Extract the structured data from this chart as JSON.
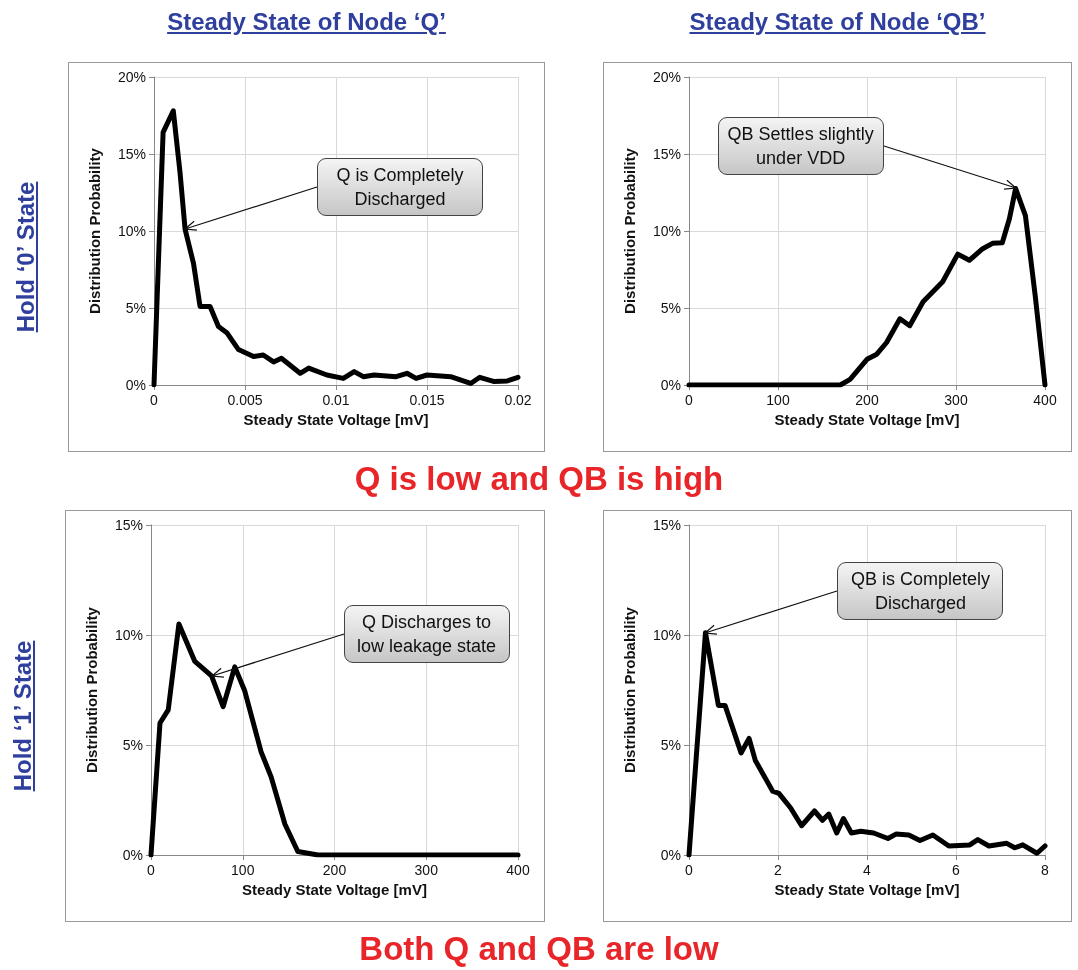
{
  "chart_data": [
    {
      "type": "line",
      "title": "Steady State of Node ‘Q’",
      "xlabel": "Steady State Voltage [mV]",
      "ylabel": "Distribution Probability",
      "grid": true,
      "marker": "none",
      "line_style": "solid",
      "xlim": [
        0,
        0.02
      ],
      "xticks": [
        0,
        0.005,
        0.01,
        0.015,
        0.02
      ],
      "ylim": [
        0,
        20
      ],
      "yticks": [
        {
          "value": 0,
          "label": "0%"
        },
        {
          "value": 5,
          "label": "5%"
        },
        {
          "value": 10,
          "label": "10%"
        },
        {
          "value": 15,
          "label": "15%"
        },
        {
          "value": 20,
          "label": "20%"
        }
      ],
      "series": [
        {
          "color": "#000000",
          "x": [
            0,
            0.0005,
            0.00106,
            0.00143,
            0.00171,
            0.00217,
            0.00253,
            0.00308,
            0.00354,
            0.004,
            0.00464,
            0.00547,
            0.006,
            0.00657,
            0.007,
            0.00803,
            0.0085,
            0.0095,
            0.0104,
            0.011,
            0.0115,
            0.0121,
            0.0133,
            0.0139,
            0.0144,
            0.015,
            0.0163,
            0.0174,
            0.0179,
            0.0187,
            0.0194,
            0.02
          ],
          "values": [
            0,
            16.4,
            17.8,
            13.8,
            10.1,
            7.9,
            5.1,
            5.1,
            3.8,
            3.4,
            2.3,
            1.85,
            1.95,
            1.5,
            1.74,
            0.76,
            1.1,
            0.65,
            0.43,
            0.87,
            0.54,
            0.65,
            0.54,
            0.76,
            0.43,
            0.65,
            0.54,
            0.1,
            0.5,
            0.22,
            0.26,
            0.5
          ]
        }
      ],
      "annotations": [
        {
          "text": "Q is Completely Discharged",
          "x": 0.00171,
          "y": 10.1
        },
        "Hold ‘0’ State",
        "Q is low and QB is high"
      ]
    },
    {
      "type": "line",
      "title": "Steady State of Node ‘QB’",
      "xlabel": "Steady State Voltage [mV]",
      "ylabel": "Distribution Probability",
      "grid": true,
      "marker": "none",
      "line_style": "solid",
      "xlim": [
        0,
        400
      ],
      "xticks": [
        0,
        100,
        200,
        300,
        400
      ],
      "ylim": [
        0,
        20
      ],
      "yticks": [
        {
          "value": 0,
          "label": "0%"
        },
        {
          "value": 5,
          "label": "5%"
        },
        {
          "value": 10,
          "label": "10%"
        },
        {
          "value": 15,
          "label": "15%"
        },
        {
          "value": 20,
          "label": "20%"
        }
      ],
      "series": [
        {
          "color": "#000000",
          "x": [
            0,
            170,
            181,
            200,
            211,
            222,
            237,
            248,
            263,
            285,
            302,
            315,
            330,
            341,
            352,
            360,
            367,
            378,
            389,
            400
          ],
          "values": [
            0,
            0,
            0.37,
            1.67,
            2.0,
            2.76,
            4.3,
            3.85,
            5.4,
            6.7,
            8.5,
            8.1,
            8.85,
            9.2,
            9.24,
            10.8,
            12.76,
            11.0,
            5.8,
            0
          ]
        }
      ],
      "annotations": [
        {
          "text": "QB Settles slightly under VDD",
          "x": 367,
          "y": 12.76
        }
      ]
    },
    {
      "type": "line",
      "xlabel": "Steady State Voltage [mV]",
      "ylabel": "Distribution Probability",
      "grid": true,
      "marker": "none",
      "line_style": "solid",
      "xlim": [
        0,
        400
      ],
      "xticks": [
        0,
        100,
        200,
        300,
        400
      ],
      "ylim": [
        0,
        15
      ],
      "yticks": [
        {
          "value": 0,
          "label": "0%"
        },
        {
          "value": 5,
          "label": "5%"
        },
        {
          "value": 10,
          "label": "10%"
        },
        {
          "value": 15,
          "label": "15%"
        }
      ],
      "series": [
        {
          "color": "#000000",
          "x": [
            0,
            9.8,
            18.8,
            30.4,
            47.8,
            66,
            78.6,
            91.3,
            102,
            120,
            131,
            146,
            160,
            182,
            400
          ],
          "values": [
            0,
            6.0,
            6.6,
            10.5,
            8.8,
            8.14,
            6.74,
            8.55,
            7.48,
            4.69,
            3.54,
            1.4,
            0.16,
            0,
            0
          ]
        }
      ],
      "annotations": [
        {
          "text": "Q Discharges to low leakage state",
          "x": 66,
          "y": 8.14
        },
        "Hold ‘1’ State",
        "Both Q and QB are low"
      ]
    },
    {
      "type": "line",
      "xlabel": "Steady State Voltage [mV]",
      "ylabel": "Distribution Probability",
      "grid": true,
      "marker": "none",
      "line_style": "solid",
      "xlim": [
        0,
        8
      ],
      "xticks": [
        0,
        2,
        4,
        6,
        8
      ],
      "ylim": [
        0,
        15
      ],
      "yticks": [
        {
          "value": 0,
          "label": "0%"
        },
        {
          "value": 5,
          "label": "5%"
        },
        {
          "value": 10,
          "label": "10%"
        },
        {
          "value": 15,
          "label": "15%"
        }
      ],
      "series": [
        {
          "color": "#000000",
          "x": [
            0,
            0.37,
            0.66,
            0.81,
            1.17,
            1.35,
            1.49,
            1.63,
            1.88,
            2.02,
            2.28,
            2.53,
            2.82,
            3.0,
            3.14,
            3.32,
            3.47,
            3.65,
            3.86,
            4.15,
            4.47,
            4.65,
            4.94,
            5.19,
            5.48,
            5.84,
            6.31,
            6.49,
            6.74,
            7.14,
            7.32,
            7.5,
            7.82,
            8
          ],
          "values": [
            0,
            10.1,
            6.8,
            6.8,
            4.64,
            5.3,
            4.3,
            3.8,
            2.9,
            2.8,
            2.15,
            1.33,
            2.0,
            1.58,
            1.86,
            1.0,
            1.66,
            1.0,
            1.08,
            1.0,
            0.75,
            0.95,
            0.91,
            0.66,
            0.91,
            0.41,
            0.46,
            0.7,
            0.41,
            0.53,
            0.33,
            0.46,
            0.08,
            0.41
          ]
        }
      ],
      "annotations": [
        {
          "text": "QB is Completely Discharged",
          "x": 0.37,
          "y": 10.1
        }
      ]
    }
  ]
}
